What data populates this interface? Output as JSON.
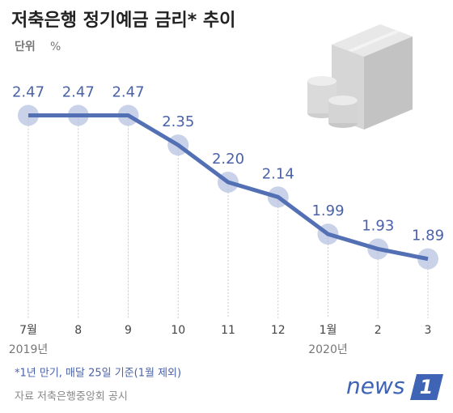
{
  "chart_data": {
    "type": "line",
    "title": "저축은행 정기예금 금리* 추이",
    "unit_label": "단위",
    "unit": "%",
    "categories": [
      "7월",
      "8",
      "9",
      "10",
      "11",
      "12",
      "1월",
      "2",
      "3"
    ],
    "years": [
      "2019년",
      null,
      null,
      null,
      null,
      null,
      "2020년",
      null,
      null
    ],
    "values": [
      2.47,
      2.47,
      2.47,
      2.35,
      2.2,
      2.14,
      1.99,
      1.93,
      1.89
    ],
    "value_labels": [
      "2.47",
      "2.47",
      "2.47",
      "2.35",
      "2.20",
      "2.14",
      "1.99",
      "1.93",
      "1.89"
    ],
    "color": "#5470b5",
    "ylim": [
      1.65,
      2.74
    ],
    "footnote": "*1년 만기, 매달 25일 기준(1월 제외)",
    "source": "자료 저축은행중앙회 공시"
  },
  "logo": {
    "word": "news",
    "mark": "1"
  }
}
